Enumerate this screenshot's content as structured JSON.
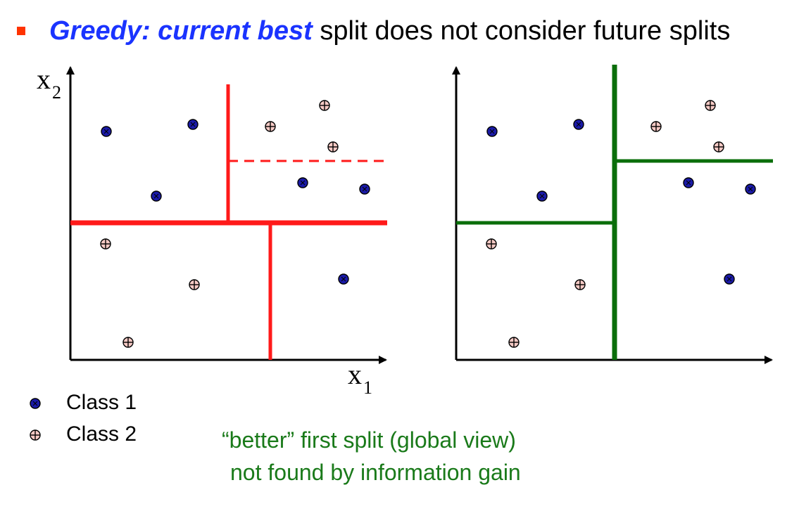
{
  "title": {
    "emphasis": "Greedy: current best",
    "rest": " split does not consider future splits"
  },
  "axes": {
    "x_label": "x1",
    "y_label": "x2"
  },
  "legend": [
    {
      "label": "Class 1",
      "marker": "filled-dot-icon",
      "color": "#1a1aa8"
    },
    {
      "label": "Class 2",
      "marker": "circle-plus-icon",
      "color": "#f5c9c4"
    }
  ],
  "caption": {
    "line1": "“better” first split (global view)",
    "line2": "not found by information gain"
  },
  "colors": {
    "greedy_split": "#ff1a1a",
    "better_split": "#0a6e0a",
    "class1_fill": "#1a1aa8",
    "class2_fill": "#f5c9c4",
    "caption_text": "#1a7a1a",
    "title_emphasis": "#1a33ff",
    "bullet": "#ff3300"
  }
}
